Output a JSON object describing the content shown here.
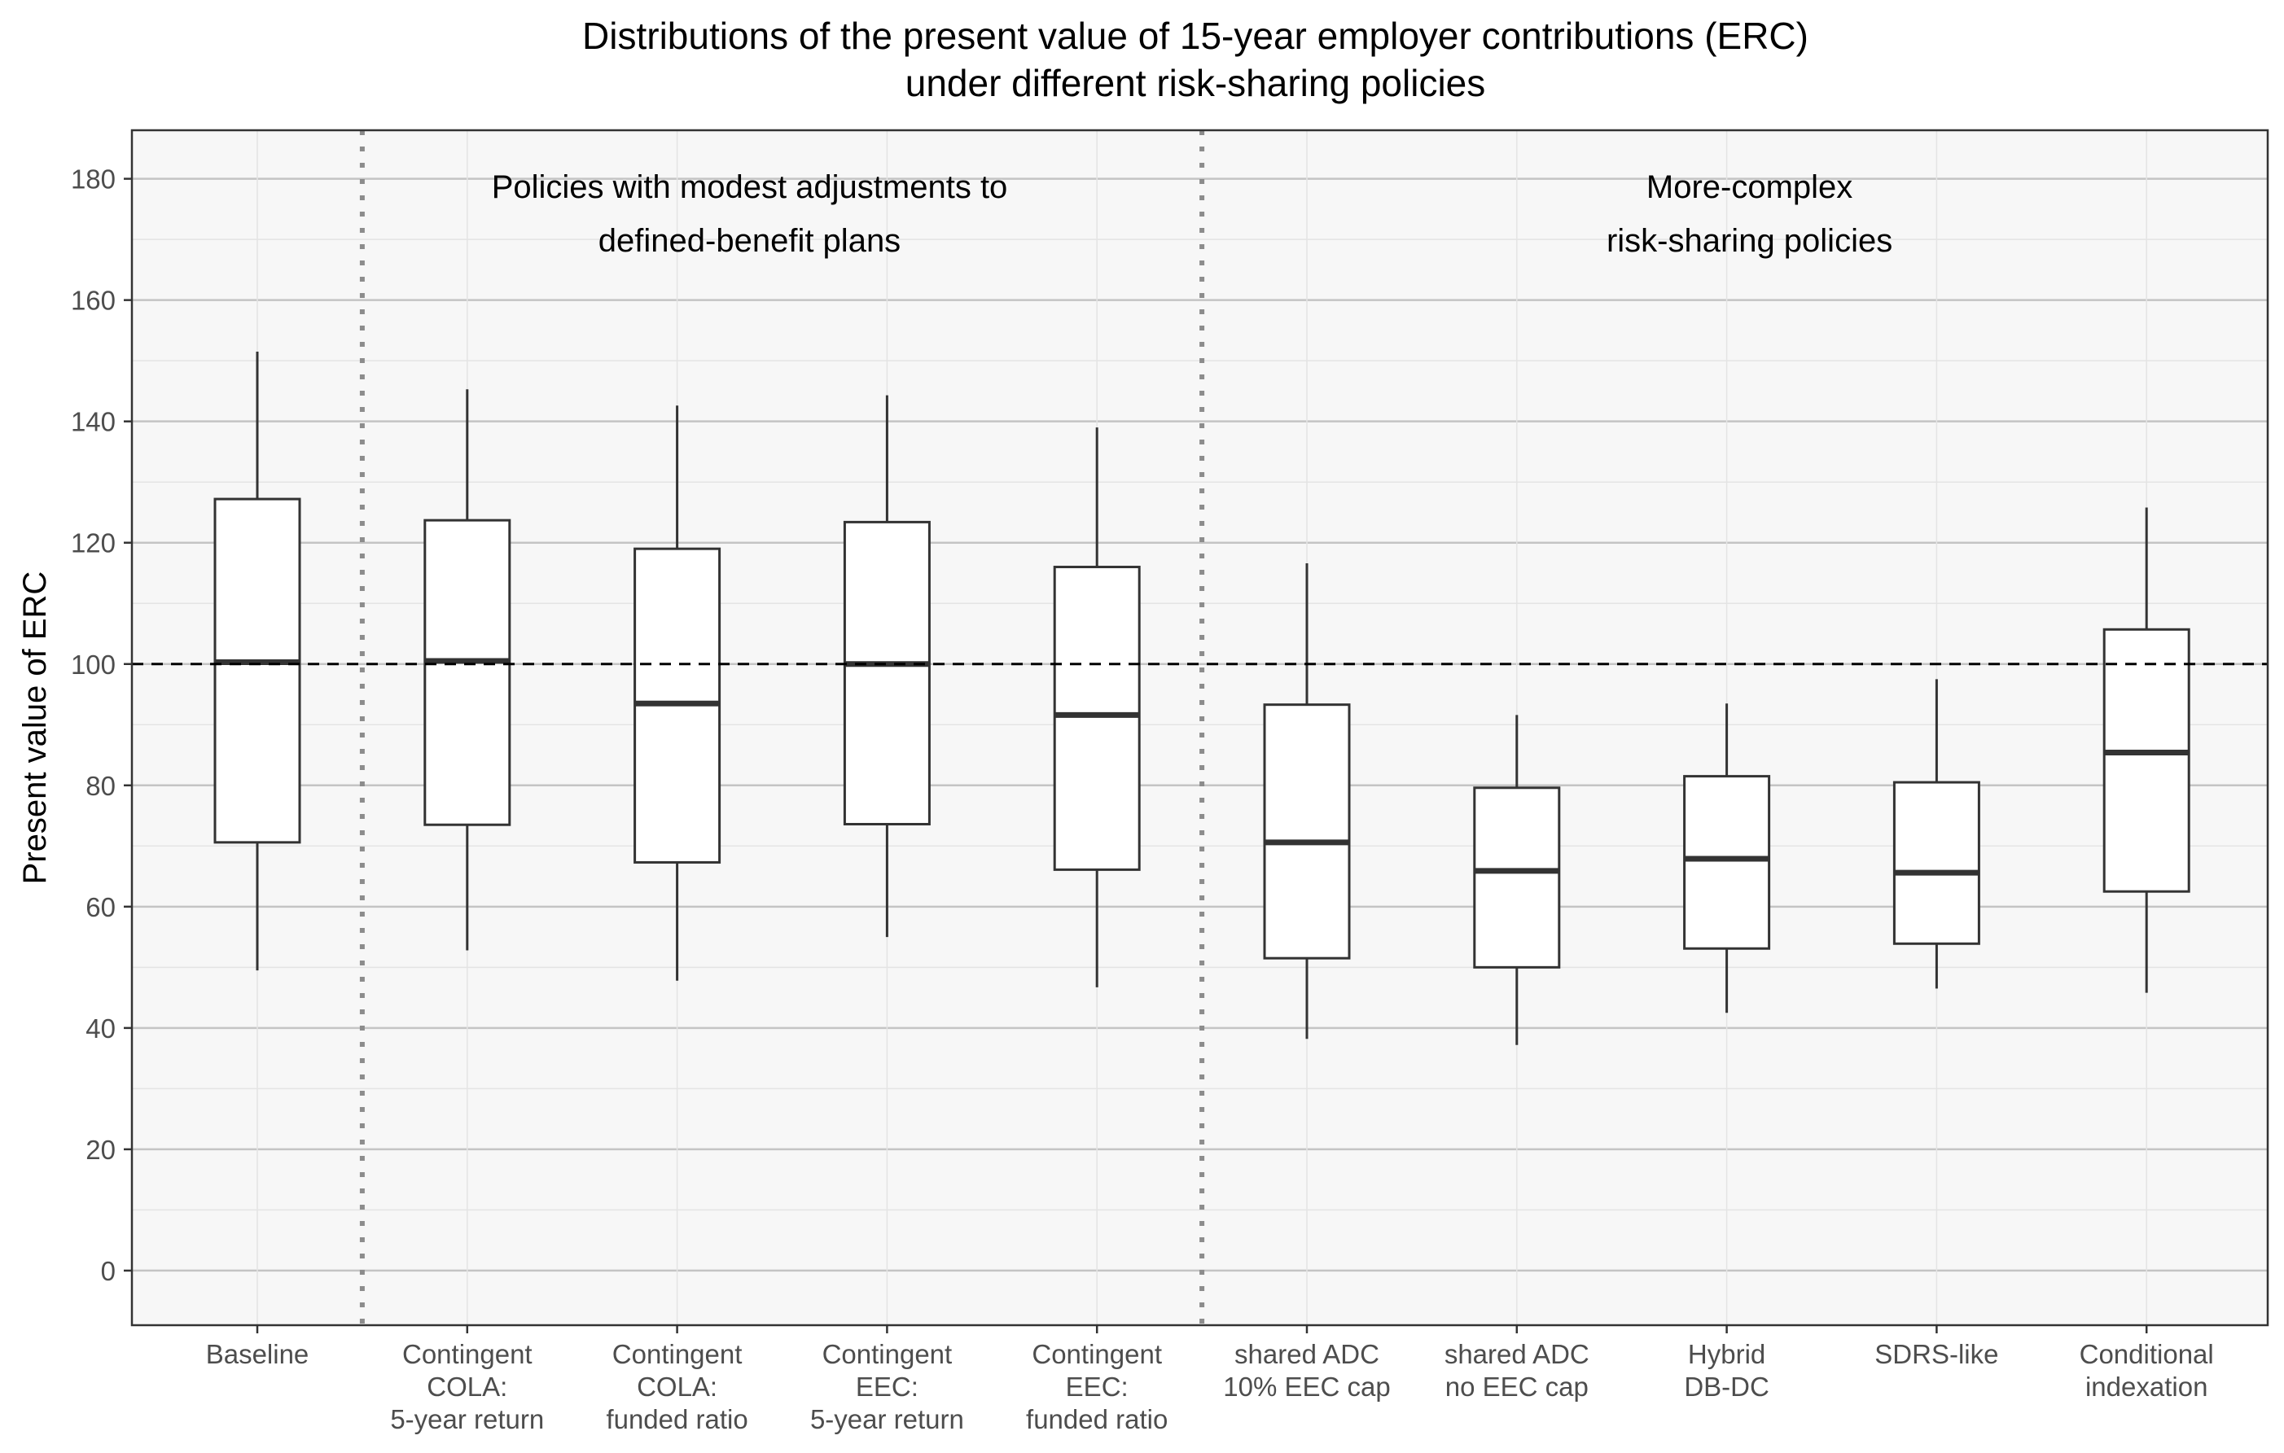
{
  "chart_data": {
    "type": "boxplot",
    "title": "Distributions of the present value of 15-year employer contributions (ERC)\nunder different risk-sharing policies",
    "xlabel": "",
    "ylabel": "Present value of ERC",
    "ylim": [
      -9,
      188
    ],
    "yticks": [
      0,
      20,
      40,
      60,
      80,
      100,
      120,
      140,
      160,
      180
    ],
    "grid": true,
    "reference_line": {
      "y": 100,
      "style": "dashed"
    },
    "group_separators_after": [
      0,
      4
    ],
    "group_labels": [
      {
        "text": "Policies with modest adjustments to\ndefined-benefit plans",
        "from": 1,
        "to": 4
      },
      {
        "text": "More-complex\nrisk-sharing policies",
        "from": 5,
        "to": 9
      }
    ],
    "categories": [
      "Baseline",
      "Contingent\nCOLA:\n5-year return",
      "Contingent\nCOLA:\nfunded ratio",
      "Contingent\nEEC:\n5-year return",
      "Contingent\nEEC:\nfunded ratio",
      "shared ADC\n10% EEC cap",
      "shared ADC\nno EEC cap",
      "Hybrid\nDB-DC",
      "SDRS-like",
      "Conditional\nindexation"
    ],
    "boxes": [
      {
        "whisker_low": 49.5,
        "q1": 70.6,
        "median": 100.3,
        "q3": 127.2,
        "whisker_high": 151.5
      },
      {
        "whisker_low": 52.8,
        "q1": 73.5,
        "median": 100.5,
        "q3": 123.7,
        "whisker_high": 145.3
      },
      {
        "whisker_low": 47.8,
        "q1": 67.3,
        "median": 93.5,
        "q3": 119.0,
        "whisker_high": 142.6
      },
      {
        "whisker_low": 55.0,
        "q1": 73.6,
        "median": 100.0,
        "q3": 123.4,
        "whisker_high": 144.3
      },
      {
        "whisker_low": 46.7,
        "q1": 66.1,
        "median": 91.6,
        "q3": 116.0,
        "whisker_high": 139.0
      },
      {
        "whisker_low": 38.2,
        "q1": 51.5,
        "median": 70.6,
        "q3": 93.3,
        "whisker_high": 116.6
      },
      {
        "whisker_low": 37.2,
        "q1": 50.0,
        "median": 65.9,
        "q3": 79.6,
        "whisker_high": 91.6
      },
      {
        "whisker_low": 42.5,
        "q1": 53.1,
        "median": 67.9,
        "q3": 81.5,
        "whisker_high": 93.5
      },
      {
        "whisker_low": 46.5,
        "q1": 53.9,
        "median": 65.6,
        "q3": 80.5,
        "whisker_high": 97.5
      },
      {
        "whisker_low": 45.8,
        "q1": 62.5,
        "median": 85.4,
        "q3": 105.7,
        "whisker_high": 125.8
      }
    ],
    "colors": {
      "panel_bg": "#f7f7f7",
      "grid_major": "#c4c4c4",
      "grid_minor": "#e4e4e4",
      "box_fill": "#ffffff",
      "box_stroke": "#333333",
      "separator": "#8c8c8c",
      "reference": "#000000"
    }
  }
}
